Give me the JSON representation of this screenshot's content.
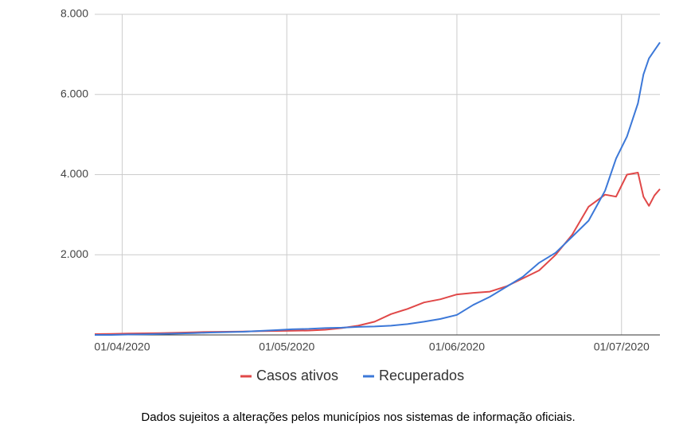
{
  "chart_data": {
    "type": "line",
    "x": [
      "2020-03-27",
      "2020-03-30",
      "2020-04-02",
      "2020-04-05",
      "2020-04-08",
      "2020-04-11",
      "2020-04-14",
      "2020-04-17",
      "2020-04-20",
      "2020-04-23",
      "2020-04-26",
      "2020-04-29",
      "2020-05-02",
      "2020-05-05",
      "2020-05-08",
      "2020-05-11",
      "2020-05-14",
      "2020-05-17",
      "2020-05-20",
      "2020-05-23",
      "2020-05-26",
      "2020-05-29",
      "2020-06-01",
      "2020-06-04",
      "2020-06-07",
      "2020-06-10",
      "2020-06-13",
      "2020-06-16",
      "2020-06-19",
      "2020-06-22",
      "2020-06-25",
      "2020-06-28",
      "2020-06-30",
      "2020-07-02",
      "2020-07-04",
      "2020-07-05",
      "2020-07-06",
      "2020-07-07",
      "2020-07-08"
    ],
    "series": [
      {
        "name": "Casos ativos",
        "color": "#e04848",
        "values": [
          20,
          25,
          35,
          40,
          45,
          55,
          65,
          75,
          80,
          85,
          95,
          100,
          105,
          110,
          130,
          170,
          230,
          330,
          520,
          650,
          810,
          890,
          1010,
          1050,
          1080,
          1210,
          1410,
          1610,
          2000,
          2500,
          3200,
          3500,
          3450,
          4000,
          4050,
          3450,
          3220,
          3480,
          3640
        ]
      },
      {
        "name": "Recuperados",
        "color": "#3c78d8",
        "values": [
          0,
          0,
          10,
          15,
          25,
          35,
          45,
          60,
          70,
          80,
          100,
          120,
          140,
          150,
          170,
          180,
          200,
          210,
          230,
          270,
          330,
          400,
          500,
          750,
          950,
          1200,
          1450,
          1800,
          2050,
          2450,
          2850,
          3600,
          4400,
          4950,
          5780,
          6500,
          6900,
          7100,
          7300
        ]
      }
    ],
    "xlim": [
      "2020-03-27",
      "2020-07-08"
    ],
    "xticks": [
      {
        "value": "2020-04-01",
        "label": "01/04/2020"
      },
      {
        "value": "2020-05-01",
        "label": "01/05/2020"
      },
      {
        "value": "2020-06-01",
        "label": "01/06/2020"
      },
      {
        "value": "2020-07-01",
        "label": "01/07/2020"
      }
    ],
    "ylim": [
      0,
      8000
    ],
    "yticks": [
      {
        "value": 2000,
        "label": "2.000"
      },
      {
        "value": 4000,
        "label": "4.000"
      },
      {
        "value": 6000,
        "label": "6.000"
      },
      {
        "value": 8000,
        "label": "8.000"
      }
    ],
    "grid": true,
    "legend": "bottom"
  },
  "footnote": "Dados sujeitos a alterações pelos municípios nos sistemas de informação oficiais."
}
